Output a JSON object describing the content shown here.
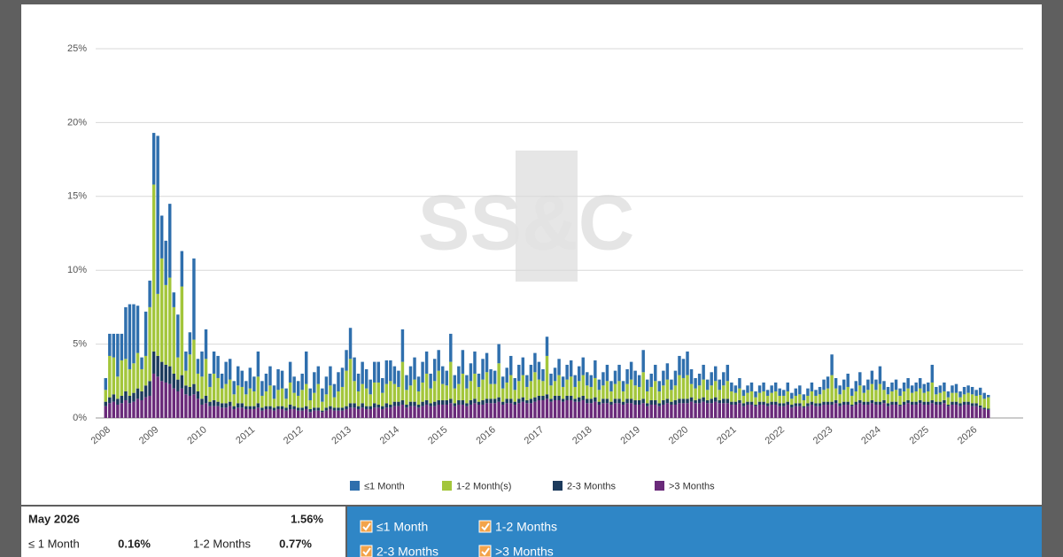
{
  "chart_data": {
    "type": "stacked-bar",
    "watermark": "SS&C",
    "categories": [
      "2008",
      null,
      null,
      null,
      null,
      null,
      null,
      null,
      null,
      null,
      null,
      null,
      "2009",
      null,
      null,
      null,
      null,
      null,
      null,
      null,
      null,
      null,
      null,
      null,
      "2010",
      null,
      null,
      null,
      null,
      null,
      null,
      null,
      null,
      null,
      null,
      null,
      "2011",
      null,
      null,
      null,
      null,
      null,
      null,
      null,
      null,
      null,
      null,
      null,
      "2012",
      null,
      null,
      null,
      null,
      null,
      null,
      null,
      null,
      null,
      null,
      null,
      "2013",
      null,
      null,
      null,
      null,
      null,
      null,
      null,
      null,
      null,
      null,
      null,
      "2014",
      null,
      null,
      null,
      null,
      null,
      null,
      null,
      null,
      null,
      null,
      null,
      "2015",
      null,
      null,
      null,
      null,
      null,
      null,
      null,
      null,
      null,
      null,
      null,
      "2016",
      null,
      null,
      null,
      null,
      null,
      null,
      null,
      null,
      null,
      null,
      null,
      "2017",
      null,
      null,
      null,
      null,
      null,
      null,
      null,
      null,
      null,
      null,
      null,
      "2018",
      null,
      null,
      null,
      null,
      null,
      null,
      null,
      null,
      null,
      null,
      null,
      "2019",
      null,
      null,
      null,
      null,
      null,
      null,
      null,
      null,
      null,
      null,
      null,
      "2020",
      null,
      null,
      null,
      null,
      null,
      null,
      null,
      null,
      null,
      null,
      null,
      "2021",
      null,
      null,
      null,
      null,
      null,
      null,
      null,
      null,
      null,
      null,
      null,
      "2022",
      null,
      null,
      null,
      null,
      null,
      null,
      null,
      null,
      null,
      null,
      null,
      "2023",
      null,
      null,
      null,
      null,
      null,
      null,
      null,
      null,
      null,
      null,
      null,
      "2024",
      null,
      null,
      null,
      null,
      null,
      null,
      null,
      null,
      null,
      null,
      null,
      "2025",
      null,
      null,
      null,
      null,
      null,
      null,
      null,
      null,
      null,
      null,
      null,
      "2026",
      null,
      null,
      null,
      null
    ],
    "series": [
      {
        "name": "≤1 Month",
        "color": "#2f6fad",
        "values": [
          0.8,
          1.5,
          1.6,
          2.9,
          1.8,
          3.5,
          4.4,
          4.0,
          3.2,
          0.8,
          3.0,
          1.8,
          3.5,
          10.7,
          2.9,
          3.0,
          5.0,
          1.0,
          2.9,
          2.4,
          1.3,
          1.5,
          5.5,
          1.0,
          1.7,
          2.0,
          0.9,
          1.5,
          1.5,
          1.0,
          1.5,
          1.4,
          0.9,
          1.3,
          1.1,
          0.9,
          1.4,
          1.0,
          1.7,
          1.0,
          1.2,
          1.3,
          0.9,
          1.4,
          1.2,
          0.7,
          1.4,
          1.1,
          1.0,
          1.1,
          2.2,
          0.8,
          1.4,
          1.2,
          0.9,
          1.2,
          1.3,
          0.9,
          1.3,
          1.3,
          1.4,
          2.1,
          1.6,
          1.2,
          1.5,
          1.3,
          1.0,
          1.4,
          1.4,
          1.0,
          1.6,
          1.4,
          1.2,
          1.1,
          2.2,
          1.0,
          1.3,
          1.5,
          1.0,
          1.4,
          1.5,
          1.0,
          1.5,
          1.4,
          1.2,
          1.0,
          1.9,
          0.9,
          1.2,
          1.6,
          0.9,
          1.2,
          1.5,
          0.9,
          1.4,
          1.3,
          1.0,
          0.9,
          1.3,
          0.8,
          1.0,
          1.3,
          0.8,
          1.1,
          1.2,
          0.8,
          1.1,
          1.3,
          1.2,
          0.8,
          1.3,
          0.8,
          0.9,
          1.1,
          0.7,
          1.0,
          1.1,
          0.8,
          1.0,
          1.2,
          0.9,
          0.8,
          1.2,
          0.7,
          0.9,
          1.1,
          0.7,
          0.9,
          1.1,
          0.7,
          1.0,
          1.2,
          1.0,
          0.8,
          1.5,
          0.8,
          0.9,
          1.1,
          0.7,
          1.0,
          1.1,
          0.7,
          1.0,
          1.3,
          1.3,
          1.6,
          1.0,
          0.7,
          0.8,
          1.0,
          0.7,
          0.9,
          1.0,
          0.7,
          0.9,
          1.1,
          0.6,
          0.5,
          0.7,
          0.4,
          0.5,
          0.6,
          0.4,
          0.5,
          0.6,
          0.4,
          0.5,
          0.6,
          0.5,
          0.4,
          0.6,
          0.4,
          0.5,
          0.6,
          0.4,
          0.5,
          0.6,
          0.4,
          0.5,
          0.7,
          0.8,
          1.4,
          0.7,
          0.6,
          0.7,
          0.9,
          0.5,
          0.7,
          0.9,
          0.5,
          0.7,
          0.9,
          0.7,
          1.2,
          0.6,
          0.5,
          0.6,
          0.7,
          0.5,
          0.6,
          0.7,
          0.5,
          0.6,
          0.7,
          0.6,
          0.6,
          1.2,
          0.5,
          0.5,
          0.6,
          0.4,
          0.5,
          0.6,
          0.4,
          0.5,
          0.5,
          0.5,
          0.4,
          0.5,
          0.4,
          0.16
        ]
      },
      {
        "name": "1-2 Month(s)",
        "color": "#a3c63b",
        "values": [
          0.8,
          2.8,
          2.5,
          1.5,
          2.4,
          2.2,
          1.8,
          2.0,
          2.4,
          1.5,
          2.0,
          5.0,
          11.3,
          4.2,
          7.0,
          5.4,
          6.0,
          4.5,
          1.5,
          6.0,
          1.0,
          2.2,
          3.0,
          1.2,
          1.5,
          2.5,
          1.0,
          1.8,
          1.6,
          1.0,
          1.3,
          1.5,
          0.8,
          1.2,
          1.1,
          0.8,
          1.2,
          1.0,
          1.8,
          0.8,
          1.0,
          1.4,
          0.6,
          1.1,
          1.2,
          0.6,
          1.5,
          0.9,
          0.8,
          1.2,
          1.5,
          0.6,
          1.0,
          1.6,
          0.6,
          0.9,
          1.4,
          0.7,
          1.1,
          1.4,
          2.4,
          3.0,
          1.5,
          1.0,
          1.3,
          1.2,
          0.8,
          1.4,
          1.5,
          0.9,
          1.3,
          1.6,
          1.2,
          1.0,
          2.6,
          1.0,
          1.1,
          1.5,
          0.9,
          1.3,
          1.8,
          1.0,
          1.4,
          2.0,
          1.1,
          1.0,
          2.5,
          1.0,
          1.1,
          1.8,
          1.0,
          1.3,
          1.7,
          1.0,
          1.4,
          1.8,
          1.0,
          1.0,
          2.3,
          0.9,
          1.1,
          1.6,
          0.8,
          1.2,
          1.5,
          0.9,
          1.2,
          1.7,
          1.1,
          1.0,
          2.6,
          0.9,
          1.0,
          1.4,
          0.8,
          1.1,
          1.3,
          0.8,
          1.1,
          1.4,
          0.9,
          0.8,
          1.3,
          0.8,
          0.9,
          1.2,
          0.7,
          1.0,
          1.2,
          0.7,
          1.0,
          1.3,
          1.0,
          0.9,
          1.8,
          0.8,
          0.9,
          1.3,
          0.8,
          1.0,
          1.3,
          0.8,
          1.0,
          1.6,
          1.4,
          1.6,
          0.9,
          0.8,
          0.9,
          1.2,
          0.7,
          0.9,
          1.1,
          0.7,
          0.9,
          1.2,
          0.7,
          0.6,
          0.8,
          0.5,
          0.6,
          0.7,
          0.5,
          0.6,
          0.7,
          0.5,
          0.6,
          0.7,
          0.5,
          0.5,
          0.7,
          0.4,
          0.5,
          0.6,
          0.4,
          0.5,
          0.7,
          0.5,
          0.6,
          0.8,
          0.9,
          1.8,
          0.8,
          0.6,
          0.8,
          1.0,
          0.6,
          0.7,
          1.0,
          0.6,
          0.8,
          1.1,
          0.8,
          1.2,
          0.7,
          0.6,
          0.7,
          0.8,
          0.6,
          0.7,
          0.8,
          0.6,
          0.7,
          0.8,
          0.6,
          0.7,
          1.2,
          0.5,
          0.6,
          0.6,
          0.5,
          0.6,
          0.6,
          0.4,
          0.5,
          0.6,
          0.6,
          0.5,
          0.7,
          0.6,
          0.77
        ]
      },
      {
        "name": "2-3 Months",
        "color": "#1c3a5c",
        "values": [
          0.3,
          0.4,
          0.5,
          0.4,
          0.5,
          0.6,
          0.5,
          0.6,
          0.7,
          0.6,
          0.8,
          1.0,
          1.5,
          1.4,
          1.3,
          1.2,
          1.2,
          1.0,
          0.8,
          0.9,
          0.6,
          0.6,
          0.7,
          0.5,
          0.4,
          0.5,
          0.3,
          0.4,
          0.3,
          0.3,
          0.3,
          0.3,
          0.2,
          0.3,
          0.3,
          0.2,
          0.2,
          0.2,
          0.3,
          0.2,
          0.2,
          0.2,
          0.2,
          0.2,
          0.2,
          0.2,
          0.3,
          0.2,
          0.2,
          0.2,
          0.2,
          0.2,
          0.2,
          0.2,
          0.1,
          0.2,
          0.2,
          0.2,
          0.2,
          0.2,
          0.2,
          0.3,
          0.3,
          0.2,
          0.3,
          0.2,
          0.2,
          0.3,
          0.2,
          0.2,
          0.3,
          0.2,
          0.3,
          0.3,
          0.3,
          0.2,
          0.3,
          0.3,
          0.2,
          0.3,
          0.3,
          0.2,
          0.3,
          0.3,
          0.3,
          0.3,
          0.3,
          0.2,
          0.3,
          0.3,
          0.2,
          0.3,
          0.3,
          0.2,
          0.3,
          0.3,
          0.3,
          0.3,
          0.3,
          0.2,
          0.3,
          0.3,
          0.2,
          0.3,
          0.3,
          0.2,
          0.3,
          0.3,
          0.3,
          0.3,
          0.3,
          0.2,
          0.3,
          0.3,
          0.2,
          0.3,
          0.3,
          0.2,
          0.3,
          0.3,
          0.3,
          0.3,
          0.3,
          0.2,
          0.3,
          0.3,
          0.2,
          0.3,
          0.3,
          0.2,
          0.3,
          0.3,
          0.3,
          0.3,
          0.3,
          0.2,
          0.3,
          0.3,
          0.2,
          0.3,
          0.3,
          0.2,
          0.3,
          0.3,
          0.3,
          0.3,
          0.3,
          0.2,
          0.3,
          0.3,
          0.2,
          0.3,
          0.3,
          0.2,
          0.3,
          0.3,
          0.2,
          0.2,
          0.2,
          0.2,
          0.2,
          0.2,
          0.1,
          0.2,
          0.2,
          0.2,
          0.2,
          0.2,
          0.2,
          0.2,
          0.2,
          0.2,
          0.2,
          0.2,
          0.1,
          0.2,
          0.2,
          0.2,
          0.2,
          0.2,
          0.2,
          0.2,
          0.2,
          0.2,
          0.2,
          0.2,
          0.1,
          0.2,
          0.2,
          0.2,
          0.2,
          0.2,
          0.2,
          0.2,
          0.2,
          0.2,
          0.2,
          0.2,
          0.1,
          0.2,
          0.2,
          0.2,
          0.2,
          0.2,
          0.2,
          0.2,
          0.2,
          0.2,
          0.2,
          0.2,
          0.1,
          0.2,
          0.2,
          0.2,
          0.2,
          0.2,
          0.2,
          0.2,
          0.15,
          0.1,
          0.08
        ]
      },
      {
        "name": ">3 Months",
        "color": "#6a2a7a",
        "values": [
          0.8,
          1.0,
          1.1,
          0.9,
          1.0,
          1.2,
          1.0,
          1.1,
          1.3,
          1.2,
          1.4,
          1.5,
          3.0,
          2.8,
          2.5,
          2.4,
          2.3,
          2.0,
          1.8,
          2.0,
          1.6,
          1.5,
          1.6,
          1.3,
          0.9,
          1.0,
          0.8,
          0.8,
          0.8,
          0.7,
          0.7,
          0.8,
          0.6,
          0.7,
          0.7,
          0.6,
          0.6,
          0.6,
          0.7,
          0.5,
          0.6,
          0.6,
          0.5,
          0.6,
          0.6,
          0.5,
          0.6,
          0.6,
          0.5,
          0.5,
          0.6,
          0.4,
          0.5,
          0.5,
          0.4,
          0.5,
          0.6,
          0.5,
          0.5,
          0.5,
          0.6,
          0.7,
          0.7,
          0.6,
          0.7,
          0.6,
          0.6,
          0.7,
          0.7,
          0.6,
          0.7,
          0.7,
          0.8,
          0.8,
          0.9,
          0.7,
          0.8,
          0.8,
          0.7,
          0.8,
          0.9,
          0.8,
          0.8,
          0.9,
          0.9,
          0.9,
          1.0,
          0.8,
          0.9,
          0.9,
          0.8,
          0.9,
          1.0,
          0.9,
          0.9,
          1.0,
          1.0,
          1.0,
          1.1,
          0.9,
          1.0,
          1.0,
          0.9,
          1.0,
          1.1,
          1.0,
          1.0,
          1.1,
          1.2,
          1.2,
          1.3,
          1.1,
          1.2,
          1.2,
          1.1,
          1.2,
          1.2,
          1.1,
          1.1,
          1.2,
          1.0,
          1.0,
          1.1,
          0.9,
          1.0,
          1.0,
          0.9,
          1.0,
          1.0,
          0.9,
          1.0,
          1.0,
          0.9,
          0.9,
          1.0,
          0.8,
          0.9,
          0.9,
          0.8,
          0.9,
          1.0,
          0.9,
          0.9,
          1.0,
          1.0,
          1.0,
          1.1,
          1.0,
          1.0,
          1.1,
          1.0,
          1.0,
          1.1,
          1.0,
          1.0,
          1.0,
          0.9,
          0.9,
          1.0,
          0.8,
          0.9,
          0.9,
          0.8,
          0.9,
          0.9,
          0.8,
          0.9,
          0.9,
          0.8,
          0.8,
          0.9,
          0.7,
          0.8,
          0.8,
          0.7,
          0.8,
          0.9,
          0.8,
          0.8,
          0.9,
          0.9,
          0.9,
          1.0,
          0.8,
          0.9,
          0.9,
          0.8,
          0.9,
          1.0,
          0.9,
          0.9,
          1.0,
          0.9,
          0.9,
          1.0,
          0.8,
          0.9,
          0.9,
          0.8,
          0.9,
          1.0,
          0.9,
          0.9,
          1.0,
          0.9,
          0.9,
          1.0,
          0.9,
          0.9,
          1.0,
          0.8,
          0.9,
          0.9,
          0.8,
          0.9,
          0.9,
          0.8,
          0.8,
          0.7,
          0.6,
          0.55
        ]
      }
    ],
    "ylim": [
      0,
      25
    ],
    "yticks": [
      {
        "value": 0,
        "label": "0%"
      },
      {
        "value": 5,
        "label": "5%"
      },
      {
        "value": 10,
        "label": "10%"
      },
      {
        "value": 15,
        "label": "15%"
      },
      {
        "value": 20,
        "label": "20%"
      },
      {
        "value": 25,
        "label": "25%"
      }
    ],
    "grid": true,
    "stacked": true,
    "legend": "bottom"
  },
  "summary": {
    "period": "May 2026",
    "total": "1.56%",
    "items": [
      {
        "label": "≤ 1 Month",
        "value": "0.16%"
      },
      {
        "label": "1-2 Months",
        "value": "0.77%"
      }
    ]
  },
  "filters": [
    "≤1 Month",
    "1-2 Months",
    "2-3 Months",
    ">3 Months"
  ]
}
